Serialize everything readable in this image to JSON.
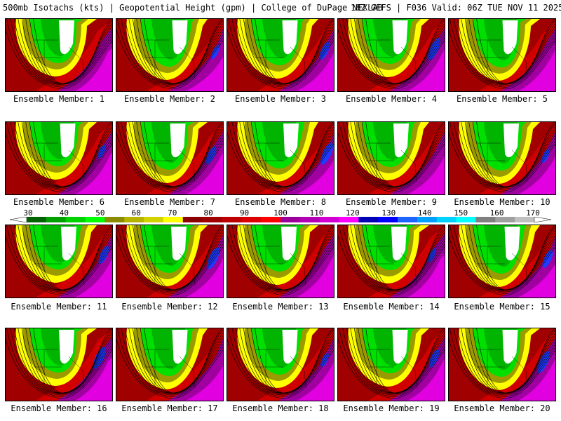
{
  "header": {
    "left": "500mb Isotachs (kts) | Geopotential Height (gpm) | College of DuPage NEXLAB",
    "right": "18Z GEFS | F036 Valid: 06Z TUE NOV 11 2025"
  },
  "members": [
    "Ensemble Member: 1",
    "Ensemble Member: 2",
    "Ensemble Member: 3",
    "Ensemble Member: 4",
    "Ensemble Member: 5",
    "Ensemble Member: 6",
    "Ensemble Member: 7",
    "Ensemble Member: 8",
    "Ensemble Member: 9",
    "Ensemble Member: 10",
    "Ensemble Member: 11",
    "Ensemble Member: 12",
    "Ensemble Member: 13",
    "Ensemble Member: 14",
    "Ensemble Member: 15",
    "Ensemble Member: 16",
    "Ensemble Member: 17",
    "Ensemble Member: 18",
    "Ensemble Member: 19",
    "Ensemble Member: 20"
  ],
  "colorbar": {
    "labels": [
      "30",
      "40",
      "50",
      "60",
      "70",
      "80",
      "90",
      "100",
      "110",
      "120",
      "130",
      "140",
      "150",
      "160",
      "170"
    ],
    "colors": [
      "#006400",
      "#00a000",
      "#00d200",
      "#00ff00",
      "#8b8b00",
      "#b4b400",
      "#d2d200",
      "#ffff00",
      "#8b0000",
      "#a00000",
      "#be0000",
      "#dc0000",
      "#ff0000",
      "#9b009b",
      "#b400b4",
      "#d200d2",
      "#ff00ff",
      "#0000b4",
      "#0000ff",
      "#1e64ff",
      "#00a0ff",
      "#00d2ff",
      "#00ffff",
      "#808080",
      "#a0a0a0",
      "#c0c0c0"
    ]
  },
  "palette": {
    "light_green": "#00e000",
    "green": "#00b400",
    "dark_green": "#008c00",
    "olive": "#9b9b00",
    "yellow": "#ffff00",
    "red": "#d00000",
    "dark_red": "#a00000",
    "purple": "#a000a0",
    "magenta": "#e000e0",
    "blue": "#1e3cff",
    "white": "#ffffff"
  }
}
